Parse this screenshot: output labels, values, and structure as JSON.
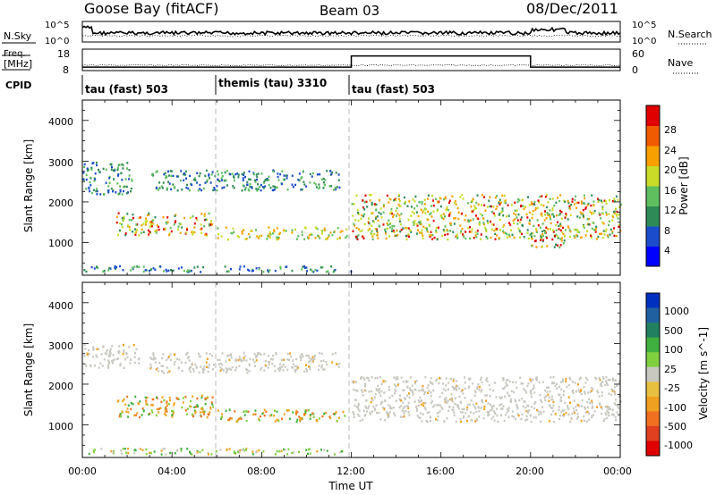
{
  "header": {
    "station": "Goose Bay (fitACF)",
    "beam": "Beam 03",
    "date": "08/Dec/2011"
  },
  "noise_panel": {
    "left_label": "N.Sky",
    "right_label": "N.Search",
    "left_ticks": [
      "10^5",
      "10^0"
    ],
    "right_ticks": [
      "10^5",
      "10^0"
    ]
  },
  "freq_panel": {
    "left_label_1": "Freq.",
    "left_label_2": "[MHz]",
    "right_label": "Nave",
    "left_ticks": [
      "18",
      "8"
    ],
    "right_ticks": [
      "60",
      "0"
    ],
    "nave_steps": [
      {
        "start": 0,
        "end": 12,
        "value": 8
      },
      {
        "start": 12,
        "end": 20,
        "value": 42
      },
      {
        "start": 20,
        "end": 24,
        "value": 8
      }
    ]
  },
  "cpid": {
    "label": "CPID",
    "segments": [
      {
        "start": 0,
        "text": "tau (fast) 503"
      },
      {
        "start": 6,
        "text": "themis (tau) 3310"
      },
      {
        "start": 12,
        "text": "tau (fast) 503"
      }
    ]
  },
  "axes": {
    "xlabel": "Time UT",
    "x_ticks": [
      "00:00",
      "04:00",
      "08:00",
      "12:00",
      "16:00",
      "20:00",
      "00:00"
    ],
    "y_label": "Slant Range [km]",
    "y_ticks": [
      "1000",
      "2000",
      "3000",
      "4000"
    ],
    "y_range_km": [
      200,
      4500
    ]
  },
  "power_colorbar": {
    "label": "Power [dB]",
    "ticks": [
      "4",
      "8",
      "12",
      "16",
      "20",
      "24",
      "28"
    ],
    "colors": [
      "#0000ff",
      "#1a4ccc",
      "#2e8b57",
      "#5fbf5f",
      "#c8dc28",
      "#f8a000",
      "#f05a00",
      "#e00000"
    ]
  },
  "velocity_colorbar": {
    "label": "Velocity [m s^-1]",
    "ticks": [
      "1000",
      "500",
      "100",
      "25",
      "-25",
      "-100",
      "-500",
      "-1000"
    ],
    "colors": [
      "#0030c0",
      "#2060a0",
      "#208060",
      "#40b040",
      "#80d040",
      "#c8c8c0",
      "#e8c040",
      "#f0a020",
      "#f07020",
      "#e04020",
      "#e00000"
    ]
  },
  "chart_data": {
    "type": "heatmap",
    "title": "Goose Bay (fitACF) Beam 03 08/Dec/2011",
    "xlabel": "Time UT",
    "ylabel": "Slant Range [km]",
    "xlim": [
      0,
      24
    ],
    "ylim": [
      200,
      4500
    ],
    "power_bands": [
      {
        "t": [
          0,
          2.2
        ],
        "range": [
          2200,
          3000
        ],
        "level": "low"
      },
      {
        "t": [
          1.5,
          5.8
        ],
        "range": [
          1200,
          1750
        ],
        "level": "high"
      },
      {
        "t": [
          6,
          11.8
        ],
        "range": [
          1100,
          1400
        ],
        "level": "mid"
      },
      {
        "t": [
          3,
          11.5
        ],
        "range": [
          2300,
          2800
        ],
        "level": "low"
      },
      {
        "t": [
          12,
          24
        ],
        "range": [
          1100,
          2200
        ],
        "level": "high"
      },
      {
        "t": [
          20,
          21.5
        ],
        "range": [
          900,
          1200
        ],
        "level": "high"
      },
      {
        "t": [
          0,
          12
        ],
        "range": [
          300,
          450
        ],
        "level": "low"
      }
    ],
    "velocity_bands": [
      {
        "t": [
          0,
          2.5
        ],
        "range": [
          2400,
          3000
        ],
        "class": "ground"
      },
      {
        "t": [
          1.5,
          5.8
        ],
        "range": [
          1200,
          1750
        ],
        "class": "negative"
      },
      {
        "t": [
          6,
          11.8
        ],
        "range": [
          1100,
          1400
        ],
        "class": "negative"
      },
      {
        "t": [
          3,
          11.5
        ],
        "range": [
          2300,
          2800
        ],
        "class": "ground"
      },
      {
        "t": [
          12,
          24
        ],
        "range": [
          1100,
          2200
        ],
        "class": "ground"
      },
      {
        "t": [
          0,
          12
        ],
        "range": [
          300,
          450
        ],
        "class": "mixed"
      }
    ]
  }
}
